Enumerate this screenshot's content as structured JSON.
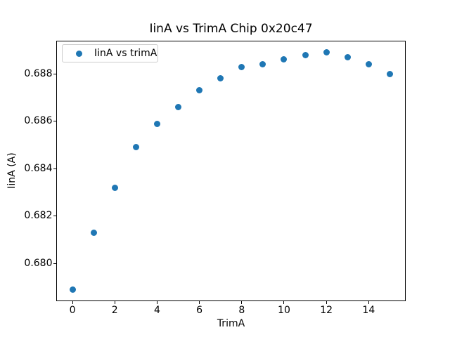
{
  "chart_data": {
    "type": "scatter",
    "title": "IinA vs TrimA Chip 0x20c47",
    "xlabel": "TrimA",
    "ylabel": "IinA (A)",
    "legend": {
      "label": "IinA vs trimA",
      "position": "upper left"
    },
    "x": [
      0,
      1,
      2,
      3,
      4,
      5,
      6,
      7,
      8,
      9,
      10,
      11,
      12,
      13,
      14,
      15
    ],
    "y": [
      0.6789,
      0.6813,
      0.6832,
      0.6849,
      0.6859,
      0.6866,
      0.6873,
      0.6878,
      0.6883,
      0.6884,
      0.6886,
      0.6888,
      0.6889,
      0.6887,
      0.6884,
      0.688
    ],
    "xlim": [
      -0.75,
      15.75
    ],
    "ylim": [
      0.6784,
      0.6894
    ],
    "xticks": [
      0,
      2,
      4,
      6,
      8,
      10,
      12,
      14
    ],
    "xtick_labels": [
      "0",
      "2",
      "4",
      "6",
      "8",
      "10",
      "12",
      "14"
    ],
    "yticks": [
      0.68,
      0.682,
      0.684,
      0.686,
      0.688
    ],
    "ytick_labels": [
      "0.680",
      "0.682",
      "0.684",
      "0.686",
      "0.688"
    ],
    "marker_color": "#1f77b4",
    "grid": false,
    "legend_position": "upper left"
  }
}
